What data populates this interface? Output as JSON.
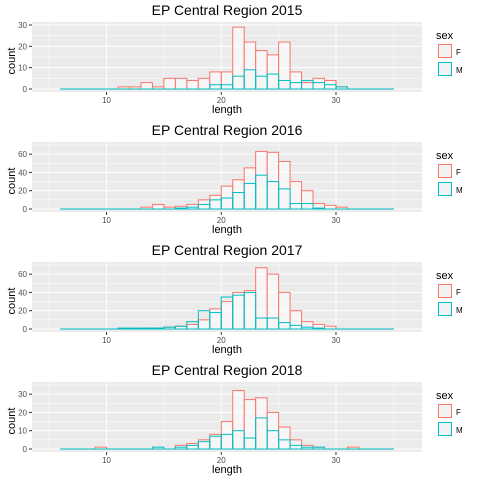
{
  "colors": {
    "F": "#F8766D",
    "M": "#00BFC4",
    "panel": "#EBEBEB",
    "grid": "#FFFFFF"
  },
  "legend": {
    "title": "sex",
    "items": [
      "F",
      "M"
    ]
  },
  "chart_data": [
    {
      "type": "histogram",
      "title": "EP Central Region 2015",
      "xlabel": "length",
      "ylabel": "count",
      "xlim": [
        3.5,
        37.5
      ],
      "ylim": [
        0,
        30
      ],
      "xticks": [
        10,
        20,
        30
      ],
      "yticks": [
        0,
        10,
        20,
        30
      ],
      "bin_starts": [
        6,
        7,
        8,
        9,
        10,
        11,
        12,
        13,
        14,
        15,
        16,
        17,
        18,
        19,
        20,
        21,
        22,
        23,
        24,
        25,
        26,
        27,
        28,
        29,
        30,
        31,
        32,
        33,
        34
      ],
      "bin_width": 1,
      "series": [
        {
          "name": "F",
          "values": [
            0,
            0,
            0,
            0,
            0,
            1,
            1,
            3,
            1,
            5,
            5,
            4,
            5,
            8,
            8,
            29,
            22,
            18,
            16,
            22,
            8,
            3,
            5,
            4,
            1,
            0,
            0,
            0,
            0
          ]
        },
        {
          "name": "M",
          "values": [
            0,
            0,
            0,
            0,
            0,
            0,
            0,
            0,
            0,
            0,
            0,
            0,
            0,
            2,
            2,
            6,
            9,
            6,
            7,
            4,
            3,
            4,
            3,
            2,
            1,
            0,
            0,
            0,
            0
          ]
        }
      ]
    },
    {
      "type": "histogram",
      "title": "EP Central Region 2016",
      "xlabel": "length",
      "ylabel": "count",
      "xlim": [
        3.5,
        37.5
      ],
      "ylim": [
        0,
        70
      ],
      "xticks": [
        10,
        20,
        30
      ],
      "yticks": [
        0,
        20,
        40,
        60
      ],
      "bin_starts": [
        6,
        7,
        8,
        9,
        10,
        11,
        12,
        13,
        14,
        15,
        16,
        17,
        18,
        19,
        20,
        21,
        22,
        23,
        24,
        25,
        26,
        27,
        28,
        29,
        30,
        31,
        32,
        33,
        34
      ],
      "bin_width": 1,
      "series": [
        {
          "name": "F",
          "values": [
            0,
            0,
            0,
            0,
            0,
            0,
            0,
            2,
            5,
            2,
            3,
            5,
            10,
            15,
            25,
            32,
            45,
            63,
            62,
            52,
            30,
            20,
            6,
            4,
            2,
            0,
            0,
            0,
            0
          ]
        },
        {
          "name": "M",
          "values": [
            0,
            0,
            0,
            0,
            0,
            0,
            0,
            0,
            0,
            0,
            1,
            2,
            5,
            10,
            12,
            18,
            28,
            37,
            30,
            22,
            6,
            6,
            1,
            0,
            0,
            0,
            0,
            0,
            0
          ]
        }
      ]
    },
    {
      "type": "histogram",
      "title": "EP Central Region 2017",
      "xlabel": "length",
      "ylabel": "count",
      "xlim": [
        3.5,
        37.5
      ],
      "ylim": [
        0,
        70
      ],
      "xticks": [
        10,
        20,
        30
      ],
      "yticks": [
        0,
        20,
        40,
        60
      ],
      "bin_starts": [
        6,
        7,
        8,
        9,
        10,
        11,
        12,
        13,
        14,
        15,
        16,
        17,
        18,
        19,
        20,
        21,
        22,
        23,
        24,
        25,
        26,
        27,
        28,
        29,
        30,
        31,
        32,
        33,
        34
      ],
      "bin_width": 1,
      "series": [
        {
          "name": "F",
          "values": [
            0,
            0,
            0,
            0,
            0,
            0,
            0,
            1,
            1,
            2,
            3,
            5,
            10,
            22,
            30,
            40,
            42,
            67,
            60,
            40,
            20,
            8,
            5,
            3,
            0,
            0,
            0,
            0,
            0
          ]
        },
        {
          "name": "M",
          "values": [
            0,
            0,
            0,
            0,
            0,
            1,
            1,
            1,
            1,
            2,
            3,
            8,
            20,
            18,
            35,
            37,
            40,
            12,
            12,
            7,
            4,
            2,
            1,
            0,
            0,
            0,
            0,
            0,
            0
          ]
        }
      ]
    },
    {
      "type": "histogram",
      "title": "EP Central Region 2018",
      "xlabel": "length",
      "ylabel": "count",
      "xlim": [
        3.5,
        37.5
      ],
      "ylim": [
        0,
        35
      ],
      "xticks": [
        10,
        20,
        30
      ],
      "yticks": [
        0,
        10,
        20,
        30
      ],
      "bin_starts": [
        6,
        7,
        8,
        9,
        10,
        11,
        12,
        13,
        14,
        15,
        16,
        17,
        18,
        19,
        20,
        21,
        22,
        23,
        24,
        25,
        26,
        27,
        28,
        29,
        30,
        31,
        32,
        33,
        34
      ],
      "bin_width": 1,
      "series": [
        {
          "name": "F",
          "values": [
            0,
            0,
            0,
            1,
            0,
            0,
            0,
            0,
            0,
            0,
            2,
            3,
            5,
            8,
            15,
            32,
            27,
            28,
            20,
            12,
            5,
            2,
            1,
            0,
            0,
            1,
            0,
            0,
            0
          ]
        },
        {
          "name": "M",
          "values": [
            0,
            0,
            0,
            0,
            0,
            0,
            0,
            0,
            1,
            0,
            1,
            2,
            4,
            7,
            8,
            10,
            6,
            17,
            10,
            5,
            2,
            1,
            1,
            0,
            0,
            0,
            0,
            0,
            0
          ]
        }
      ]
    }
  ]
}
